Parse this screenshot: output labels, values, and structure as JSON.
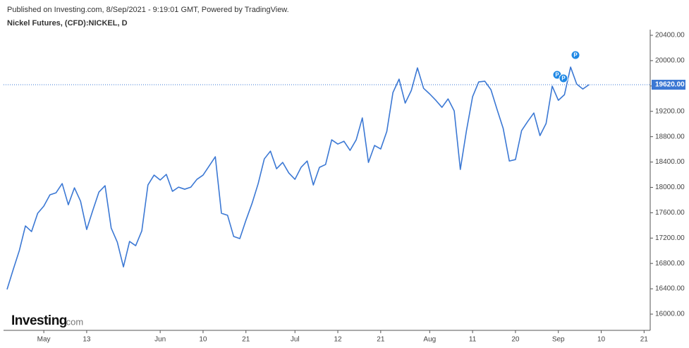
{
  "header": {
    "published": "Published on Investing.com, 8/Sep/2021 - 9:19:01 GMT, Powered by TradingView.",
    "symbol": "Nickel Futures, (CFD):NICKEL, D"
  },
  "watermark": {
    "name": "Investing",
    "suffix": ".com"
  },
  "chart_data": {
    "type": "line",
    "categories": [
      null,
      null,
      null,
      null,
      null,
      null,
      "May",
      null,
      null,
      null,
      null,
      null,
      null,
      "13",
      null,
      null,
      null,
      null,
      null,
      null,
      null,
      null,
      null,
      null,
      null,
      "Jun",
      null,
      null,
      null,
      null,
      null,
      null,
      "10",
      null,
      null,
      null,
      null,
      null,
      null,
      "21",
      null,
      null,
      null,
      null,
      null,
      null,
      null,
      "Jul",
      null,
      null,
      null,
      null,
      null,
      null,
      "12",
      null,
      null,
      null,
      null,
      null,
      null,
      "21",
      null,
      null,
      null,
      null,
      null,
      null,
      null,
      "Aug",
      null,
      null,
      null,
      null,
      null,
      null,
      "11",
      null,
      null,
      null,
      null,
      null,
      null,
      "20",
      null,
      null,
      null,
      null,
      null,
      null,
      "Sep",
      null,
      null,
      null,
      null,
      null,
      null,
      "10",
      null,
      null,
      null,
      null,
      null,
      null,
      "21",
      null
    ],
    "series": [
      {
        "name": "Nickel Futures",
        "color": "#3b78d4",
        "values": [
          16390,
          16702,
          17002,
          17392,
          17303,
          17592,
          17704,
          17882,
          17915,
          18060,
          17726,
          17993,
          17782,
          17336,
          17637,
          17927,
          18027,
          17359,
          17136,
          16746,
          17147,
          17080,
          17314,
          18038,
          18194,
          18116,
          18205,
          17938,
          18004,
          17971,
          18004,
          18127,
          18194,
          18339,
          18483,
          17592,
          17559,
          17225,
          17192,
          17481,
          17748,
          18060,
          18450,
          18572,
          18294,
          18394,
          18227,
          18127,
          18316,
          18416,
          18038,
          18316,
          18361,
          18751,
          18684,
          18728,
          18584,
          18751,
          19096,
          18394,
          18662,
          18606,
          18884,
          19497,
          19708,
          19330,
          19530,
          19886,
          19564,
          19474,
          19374,
          19263,
          19396,
          19207,
          18283,
          18895,
          19430,
          19664,
          19675,
          19541,
          19229,
          18929,
          18416,
          18439,
          18895,
          19040,
          19174,
          18817,
          19007,
          19597,
          19374,
          19463,
          19898,
          19630,
          19552,
          19620,
          null,
          null,
          null,
          null,
          null,
          null,
          null,
          null,
          null,
          null
        ]
      }
    ],
    "ylim": [
      15744,
      20489
    ],
    "yticks": [
      {
        "value": 16000,
        "label": "16000.00"
      },
      {
        "value": 16400,
        "label": "16400.00"
      },
      {
        "value": 16800,
        "label": "16800.00"
      },
      {
        "value": 17200,
        "label": "17200.00"
      },
      {
        "value": 17600,
        "label": "17600.00"
      },
      {
        "value": 18000,
        "label": "18000.00"
      },
      {
        "value": 18400,
        "label": "18400.00"
      },
      {
        "value": 18800,
        "label": "18800.00"
      },
      {
        "value": 19200,
        "label": "19200.00"
      },
      {
        "value": 19600,
        "label": "19600.00"
      },
      {
        "value": 20000,
        "label": "20000.00"
      },
      {
        "value": 20400,
        "label": "20400.00"
      }
    ],
    "last_price": {
      "value": 19620,
      "label": "19620.00"
    },
    "annotations": [
      "P",
      "P",
      "P"
    ],
    "grid": false
  }
}
